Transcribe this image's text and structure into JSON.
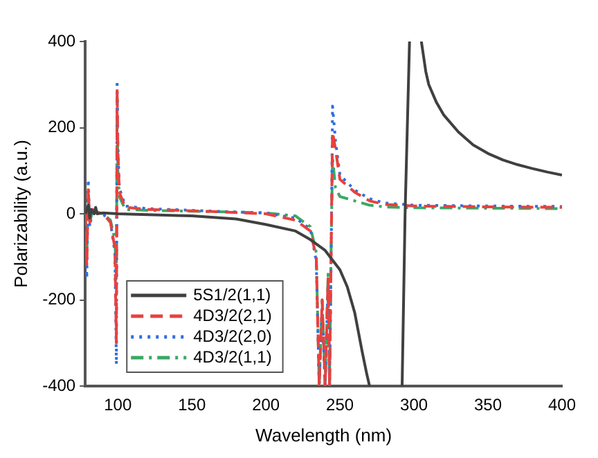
{
  "chart_data": {
    "type": "line",
    "xlabel": "Wavelength (nm)",
    "ylabel": "Polarizability (a.u.)",
    "xlim": [
      78,
      400
    ],
    "xticks": [
      100,
      150,
      200,
      250,
      300,
      350,
      400
    ],
    "ylim": [
      -400,
      400
    ],
    "yticks": [
      -400,
      -200,
      0,
      200,
      400
    ],
    "grid": false,
    "legend": "bottom left",
    "marker": "none",
    "series": [
      {
        "name": "5S1/2(1,1)",
        "color": "#404040",
        "line_style": "solid",
        "x": [
          78,
          80,
          81,
          82,
          84,
          85,
          86,
          90,
          100,
          120,
          150,
          180,
          200,
          220,
          230,
          240,
          250,
          255,
          260,
          265,
          268,
          270,
          281,
          292,
          294,
          297,
          301,
          305,
          308,
          310,
          315,
          320,
          330,
          340,
          350,
          360,
          370,
          380,
          390,
          400
        ],
        "values": [
          0,
          20,
          -10,
          10,
          0,
          15,
          0,
          2,
          0,
          -2,
          -5,
          -12,
          -25,
          -40,
          -60,
          -85,
          -130,
          -170,
          -230,
          -320,
          -370,
          -400,
          null,
          -400,
          0,
          400,
          null,
          400,
          330,
          300,
          260,
          230,
          190,
          160,
          140,
          125,
          114,
          105,
          97,
          90
        ]
      },
      {
        "name": "4D3/2(2,1)",
        "color": "#e8413e",
        "line_style": "dashed",
        "x": [
          78,
          79,
          80,
          81,
          83,
          85,
          90,
          95,
          98,
          99,
          99.5,
          100,
          101,
          105,
          120,
          150,
          180,
          200,
          220,
          230,
          234,
          236,
          238,
          240,
          242,
          243,
          244,
          245,
          247,
          250,
          260,
          270,
          280,
          300,
          350,
          400
        ],
        "values": [
          0,
          -120,
          60,
          -20,
          10,
          5,
          0,
          -20,
          -80,
          -300,
          290,
          150,
          50,
          15,
          10,
          7,
          3,
          0,
          -15,
          -40,
          -100,
          -400,
          -200,
          -400,
          -150,
          -400,
          -100,
          190,
          150,
          80,
          50,
          30,
          22,
          18,
          16,
          15
        ]
      },
      {
        "name": "4D3/2(2,0)",
        "color": "#2f6fe0",
        "line_style": "dotted",
        "x": [
          78,
          79,
          80,
          81,
          83,
          85,
          90,
          95,
          98,
          99,
          99.5,
          100,
          101,
          105,
          120,
          150,
          180,
          200,
          220,
          230,
          234,
          236,
          238,
          240,
          242,
          243,
          244,
          245,
          247,
          250,
          260,
          270,
          280,
          300,
          350,
          400
        ],
        "values": [
          0,
          -150,
          80,
          -30,
          10,
          5,
          0,
          -20,
          -90,
          -350,
          310,
          160,
          60,
          18,
          12,
          8,
          4,
          2,
          -10,
          -35,
          -110,
          -400,
          -220,
          -400,
          -160,
          -400,
          -120,
          250,
          170,
          90,
          55,
          35,
          25,
          20,
          18,
          17
        ]
      },
      {
        "name": "4D3/2(1,1)",
        "color": "#3aa864",
        "line_style": "dashdot",
        "x": [
          78,
          79,
          80,
          81,
          83,
          85,
          90,
          95,
          98,
          99,
          99.5,
          100,
          101,
          105,
          120,
          150,
          180,
          200,
          220,
          230,
          234,
          236,
          238,
          240,
          242,
          243,
          244,
          245,
          247,
          250,
          260,
          270,
          280,
          300,
          350,
          400
        ],
        "values": [
          0,
          -100,
          40,
          -20,
          8,
          4,
          0,
          -15,
          -60,
          -150,
          270,
          100,
          40,
          10,
          8,
          6,
          4,
          2,
          -5,
          -30,
          -90,
          -400,
          -200,
          -400,
          -140,
          -400,
          -90,
          130,
          60,
          40,
          30,
          20,
          16,
          14,
          13,
          12
        ]
      }
    ]
  }
}
